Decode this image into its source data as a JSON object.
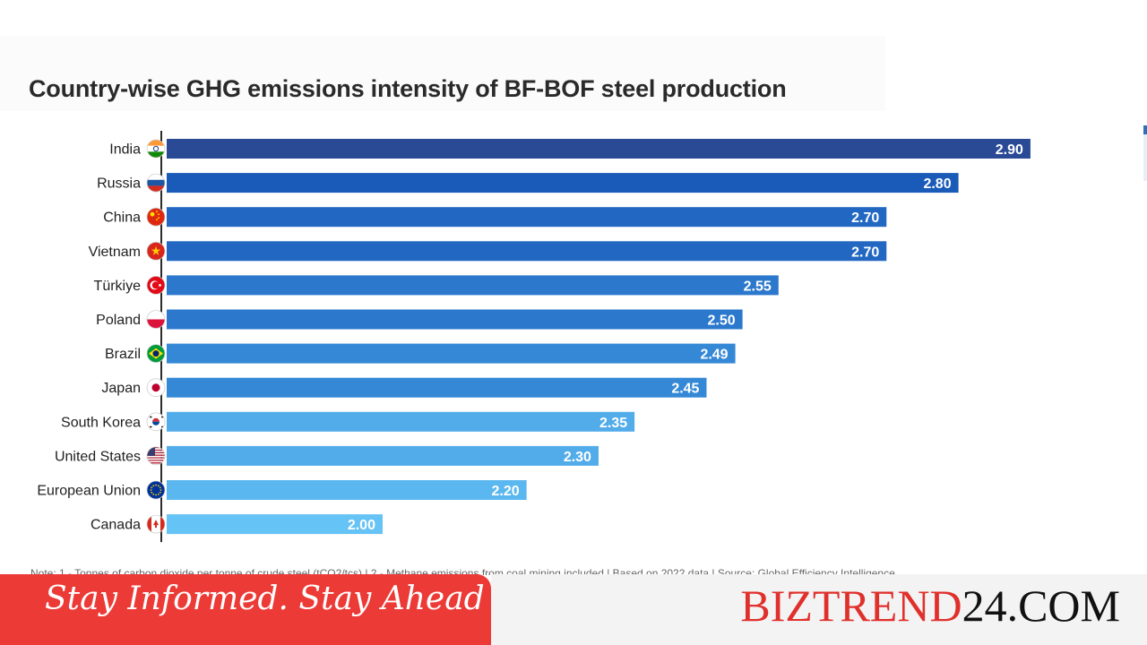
{
  "chart_data": {
    "type": "bar",
    "orientation": "horizontal",
    "title": "Country-wise GHG emissions intensity of BF-BOF steel production",
    "categories": [
      "India",
      "Russia",
      "China",
      "Vietnam",
      "Türkiye",
      "Poland",
      "Brazil",
      "Japan",
      "South Korea",
      "United States",
      "European Union",
      "Canada"
    ],
    "values": [
      2.9,
      2.8,
      2.7,
      2.7,
      2.55,
      2.5,
      2.49,
      2.45,
      2.35,
      2.3,
      2.2,
      2.0
    ],
    "value_labels": [
      "2.90",
      "2.80",
      "2.70",
      "2.70",
      "2.55",
      "2.50",
      "2.49",
      "2.45",
      "2.35",
      "2.30",
      "2.20",
      "2.00"
    ],
    "xlim": [
      1.7,
      2.92
    ],
    "bar_colors": [
      "#2a4a96",
      "#1a5ab8",
      "#2268c2",
      "#2268c2",
      "#2b78cc",
      "#2b78cc",
      "#3488d6",
      "#3488d6",
      "#52acea",
      "#52acea",
      "#5ab7ef",
      "#66c3f5"
    ],
    "flags": [
      "india-flag",
      "russia-flag",
      "china-flag",
      "vietnam-flag",
      "turkiye-flag",
      "poland-flag",
      "brazil-flag",
      "japan-flag",
      "south-korea-flag",
      "united-states-flag",
      "european-union-flag",
      "canada-flag"
    ],
    "grid": false,
    "legend": "none"
  },
  "note": "Note: 1 - Tonnes of carbon dioxide per tonne of crude steel (tCO2/tcs)  |  2 - Methane emissions from coal mining included  |  Based on 2022 data  |  Source: Global Efficiency Intelligence",
  "banner": {
    "tagline": "Stay Informed. Stay Ahead",
    "brand_part1": "BIZTREND",
    "brand_part2": "24.COM",
    "brand_color1": "#e0302c",
    "brand_color2": "#111111",
    "banner_color": "#ec3a36"
  }
}
